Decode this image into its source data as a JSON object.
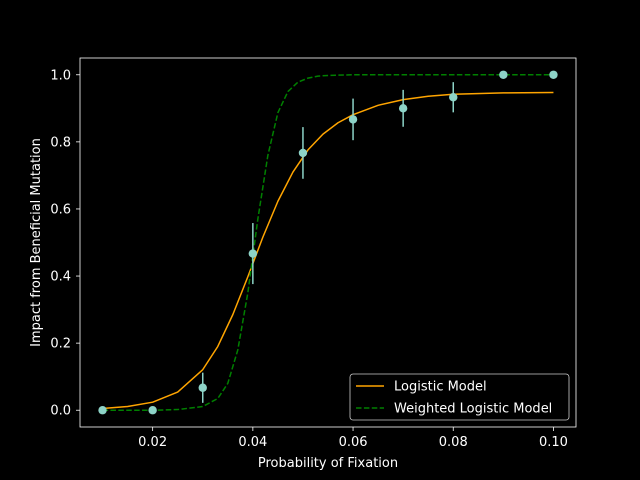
{
  "chart_data": {
    "type": "scatter",
    "xlabel": "Probability of Fixation",
    "ylabel": "Impact from Beneficial Mutation",
    "xlim": [
      0.0055,
      0.1045
    ],
    "ylim": [
      -0.05,
      1.05
    ],
    "xticks": [
      0.02,
      0.04,
      0.06,
      0.08,
      0.1
    ],
    "xtick_labels": [
      "0.02",
      "0.04",
      "0.06",
      "0.08",
      "0.10"
    ],
    "yticks": [
      0.0,
      0.2,
      0.4,
      0.6,
      0.8,
      1.0
    ],
    "ytick_labels": [
      "0.0",
      "0.2",
      "0.4",
      "0.6",
      "0.8",
      "1.0"
    ],
    "grid": false,
    "legend_position": "lower-right",
    "points": {
      "color": "#8dd3c7",
      "x": [
        0.01,
        0.02,
        0.03,
        0.04,
        0.05,
        0.06,
        0.07,
        0.08,
        0.09,
        0.1
      ],
      "y": [
        0.0,
        0.0,
        0.067,
        0.467,
        0.767,
        0.867,
        0.9,
        0.933,
        1.0,
        1.0
      ],
      "yerr": [
        0.0,
        0.0,
        0.045,
        0.091,
        0.077,
        0.062,
        0.055,
        0.045,
        0.0,
        0.0
      ]
    },
    "series": [
      {
        "name": "Logistic Model",
        "color": "#ffa500",
        "style": "solid",
        "x": [
          0.01,
          0.015,
          0.02,
          0.025,
          0.03,
          0.033,
          0.036,
          0.039,
          0.042,
          0.045,
          0.048,
          0.051,
          0.054,
          0.057,
          0.06,
          0.065,
          0.07,
          0.075,
          0.08,
          0.09,
          0.1
        ],
        "y": [
          0.005,
          0.011,
          0.024,
          0.054,
          0.121,
          0.19,
          0.285,
          0.398,
          0.516,
          0.623,
          0.71,
          0.776,
          0.823,
          0.857,
          0.881,
          0.909,
          0.926,
          0.936,
          0.942,
          0.946,
          0.947
        ]
      },
      {
        "name": "Weighted Logistic Model",
        "color": "#008000",
        "style": "dashed",
        "x": [
          0.01,
          0.02,
          0.025,
          0.03,
          0.033,
          0.035,
          0.037,
          0.039,
          0.04,
          0.041,
          0.043,
          0.045,
          0.047,
          0.049,
          0.051,
          0.053,
          0.055,
          0.06,
          0.07,
          0.1
        ],
        "y": [
          0.0,
          0.0,
          0.002,
          0.011,
          0.035,
          0.08,
          0.18,
          0.35,
          0.46,
          0.57,
          0.76,
          0.887,
          0.95,
          0.978,
          0.99,
          0.996,
          0.998,
          1.0,
          1.0,
          1.0
        ]
      }
    ]
  }
}
